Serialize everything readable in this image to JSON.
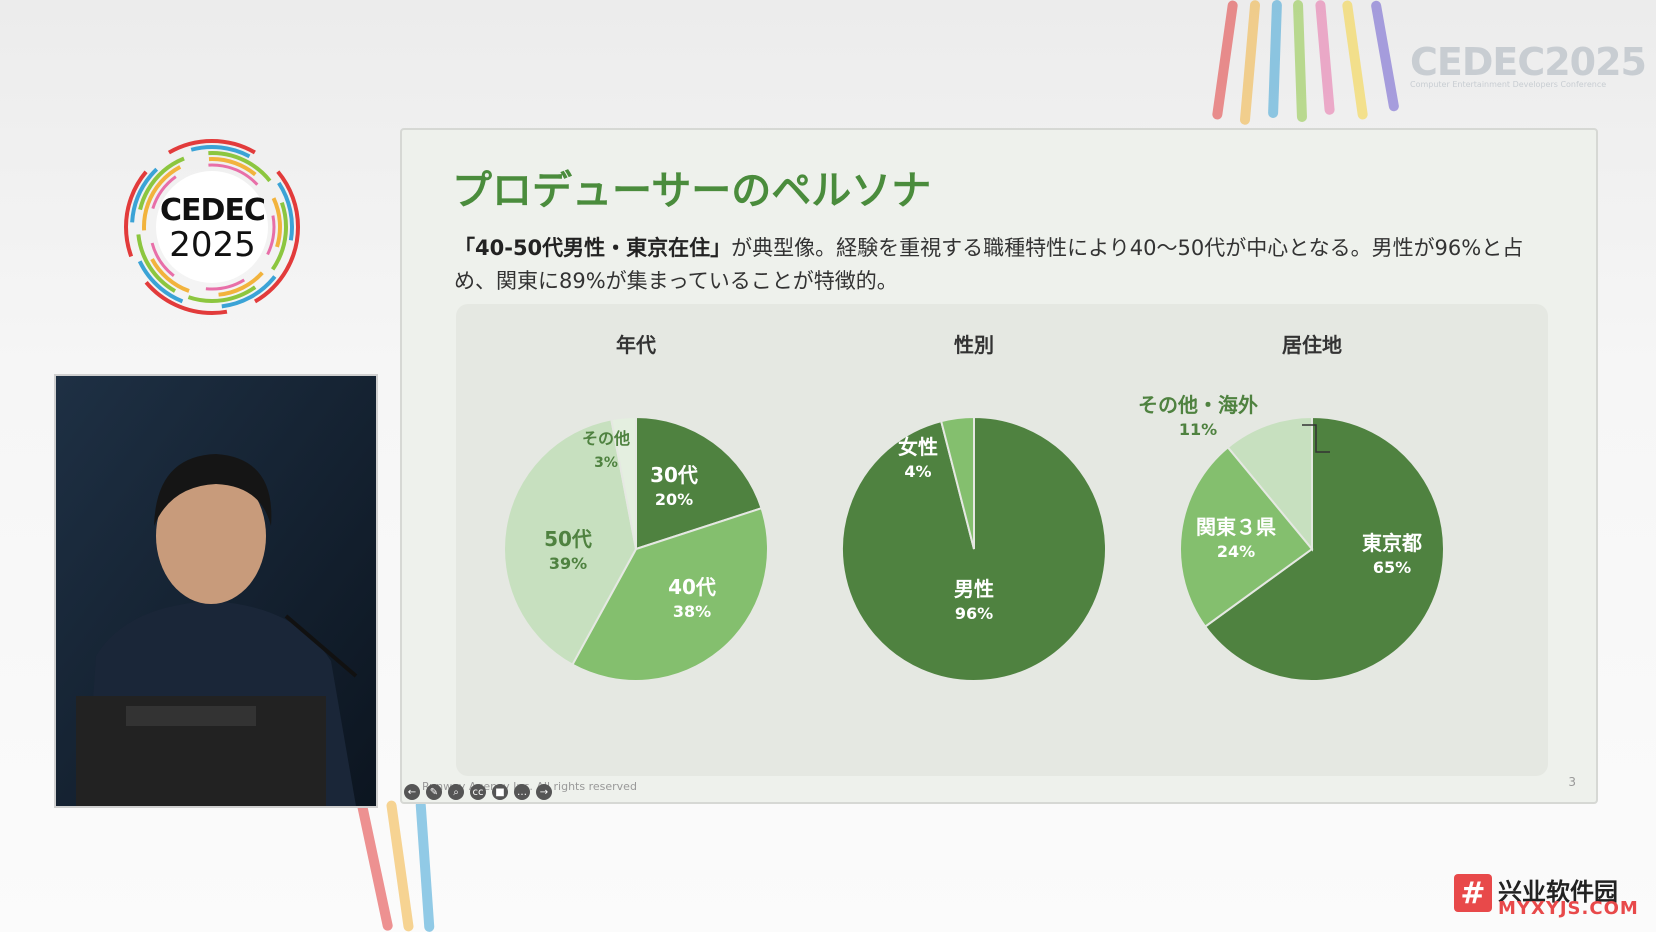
{
  "event_logo": {
    "name": "CEDEC",
    "year": "2025",
    "subtitle": "Computer Entertainment Developers Conference"
  },
  "slide": {
    "title": "プロデューサーのペルソナ",
    "description_bold": "「40-50代男性・東京在住」",
    "description_rest": "が典型像。経験を重視する職種特性により40〜50代が中心となる。男性が96%と占め、関東に89%が集まっていることが特徴的。",
    "footer": "Runway Agency Inc. All rights reserved",
    "page_number": "3"
  },
  "colors": {
    "dark": "#4f8240",
    "mid": "#84bf6e",
    "light": "#c7e0bf",
    "title": "#4a8c3c"
  },
  "chart_data": [
    {
      "type": "pie",
      "title": "年代",
      "slices": [
        {
          "label": "30代",
          "value": 20,
          "display": "20%",
          "color": "#4f8240"
        },
        {
          "label": "40代",
          "value": 38,
          "display": "38%",
          "color": "#84bf6e"
        },
        {
          "label": "50代",
          "value": 39,
          "display": "39%",
          "color": "#c7e0bf"
        },
        {
          "label": "その他",
          "value": 3,
          "display": "3%",
          "color": "#e4efe0"
        }
      ]
    },
    {
      "type": "pie",
      "title": "性別",
      "slices": [
        {
          "label": "男性",
          "value": 96,
          "display": "96%",
          "color": "#4f8240"
        },
        {
          "label": "女性",
          "value": 4,
          "display": "4%",
          "color": "#84bf6e"
        }
      ]
    },
    {
      "type": "pie",
      "title": "居住地",
      "slices": [
        {
          "label": "東京都",
          "value": 65,
          "display": "65%",
          "color": "#4f8240"
        },
        {
          "label": "関東３県",
          "value": 24,
          "display": "24%",
          "color": "#84bf6e"
        },
        {
          "label": "その他・海外",
          "value": 11,
          "display": "11%",
          "color": "#c7e0bf"
        }
      ]
    }
  ],
  "watermark": {
    "cn": "兴业软件园",
    "en": "MYXYJS.COM",
    "icon": "hash-icon"
  },
  "controls": [
    {
      "icon": "back-arrow-icon",
      "glyph": "←"
    },
    {
      "icon": "pen-icon",
      "glyph": "✎"
    },
    {
      "icon": "zoom-icon",
      "glyph": "⌕"
    },
    {
      "icon": "captions-icon",
      "glyph": "cc"
    },
    {
      "icon": "camera-icon",
      "glyph": "■"
    },
    {
      "icon": "more-icon",
      "glyph": "…"
    },
    {
      "icon": "forward-arrow-icon",
      "glyph": "→"
    }
  ]
}
